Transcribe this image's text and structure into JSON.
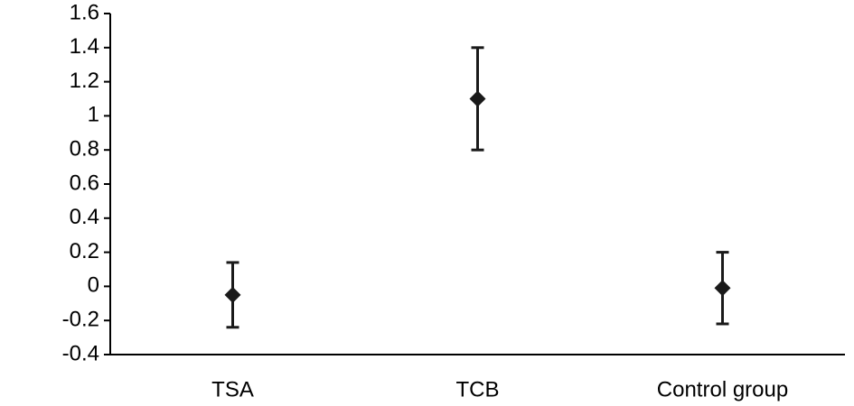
{
  "chart_data": {
    "type": "errorbar",
    "categories": [
      "TSA",
      "TCB",
      "Control group"
    ],
    "values": [
      -0.05,
      1.1,
      -0.01
    ],
    "errors": [
      0.19,
      0.3,
      0.21
    ],
    "color": "#1a1a1a",
    "ylim": [
      -0.4,
      1.6
    ],
    "yticks": [
      -0.4,
      -0.2,
      0,
      0.2,
      0.4,
      0.6,
      0.8,
      1,
      1.2,
      1.4,
      1.6
    ],
    "grid": false
  }
}
